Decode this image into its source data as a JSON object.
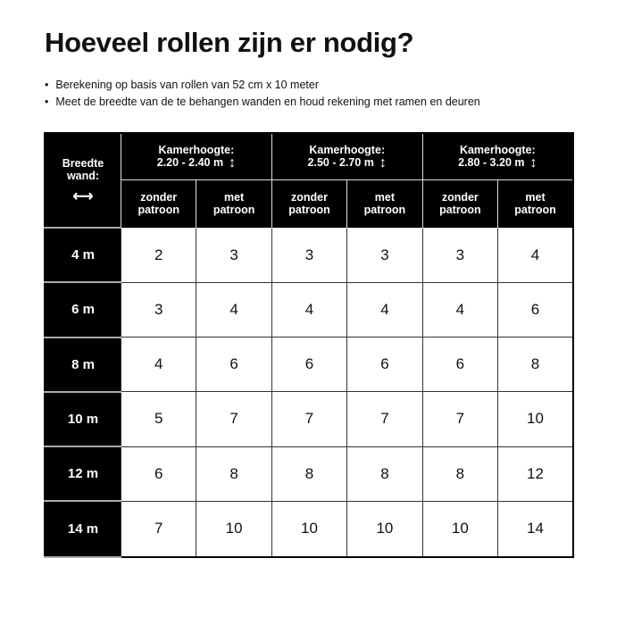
{
  "title": "Hoeveel rollen zijn er nodig?",
  "bullets": [
    "Berekening op basis van rollen van 52 cm x 10 meter",
    "Meet de breedte van de te behangen wanden en houd rekening met ramen en deuren"
  ],
  "table": {
    "corner_label": "Breedte wand:",
    "corner_icon": "horizontal-double-arrow-icon",
    "height_label": "Kamerhoogte:",
    "height_icon": "vertical-double-arrow-icon",
    "height_ranges": [
      "2.20 - 2.40 m",
      "2.50 - 2.70 m",
      "2.80 - 3.20 m"
    ],
    "sub_columns": [
      "zonder patroon",
      "met patroon"
    ],
    "rows": [
      {
        "width": "4 m",
        "values": [
          "2",
          "3",
          "3",
          "3",
          "3",
          "4"
        ]
      },
      {
        "width": "6 m",
        "values": [
          "3",
          "4",
          "4",
          "4",
          "4",
          "6"
        ]
      },
      {
        "width": "8 m",
        "values": [
          "4",
          "6",
          "6",
          "6",
          "6",
          "8"
        ]
      },
      {
        "width": "10 m",
        "values": [
          "5",
          "7",
          "7",
          "7",
          "7",
          "10"
        ]
      },
      {
        "width": "12 m",
        "values": [
          "6",
          "8",
          "8",
          "8",
          "8",
          "12"
        ]
      },
      {
        "width": "14 m",
        "values": [
          "7",
          "10",
          "10",
          "10",
          "10",
          "14"
        ]
      }
    ]
  }
}
